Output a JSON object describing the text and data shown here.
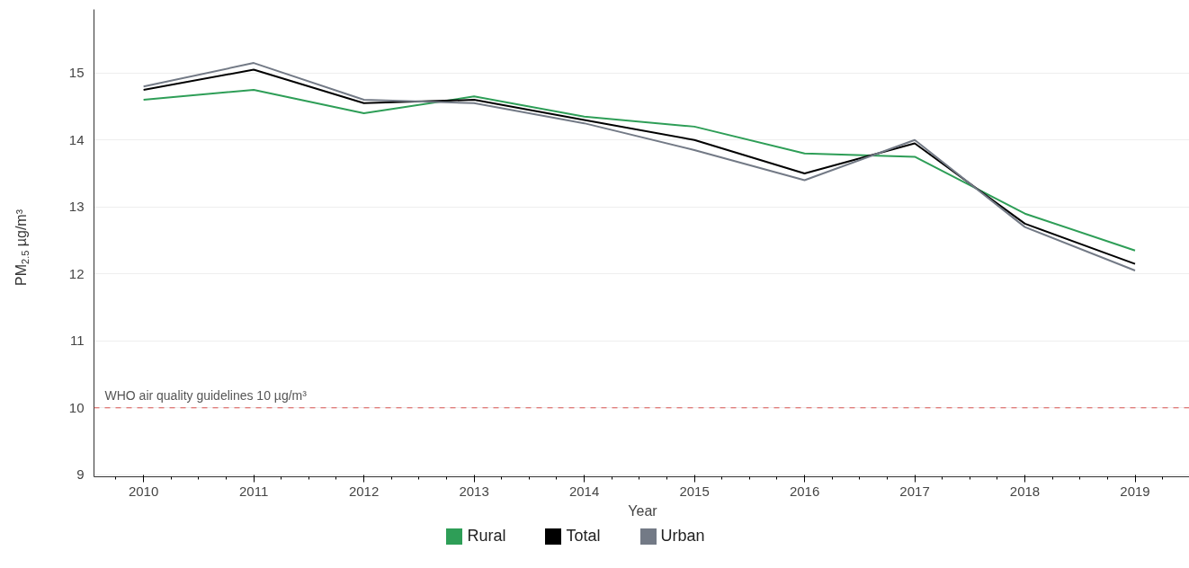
{
  "chart_data": {
    "type": "line",
    "xlabel": "Year",
    "ylabel": "PM$_{2.5}$ µg/m³",
    "x": [
      2010,
      2011,
      2012,
      2013,
      2014,
      2015,
      2016,
      2017,
      2018,
      2019
    ],
    "series": [
      {
        "name": "Rural",
        "color": "#2e9e57",
        "values": [
          14.6,
          14.75,
          14.4,
          14.65,
          14.35,
          14.2,
          13.8,
          13.75,
          12.9,
          12.35
        ]
      },
      {
        "name": "Total",
        "color": "#000000",
        "values": [
          14.75,
          15.05,
          14.55,
          14.6,
          14.3,
          14.0,
          13.5,
          13.95,
          12.75,
          12.15
        ]
      },
      {
        "name": "Urban",
        "color": "#737a86",
        "values": [
          14.8,
          15.15,
          14.6,
          14.55,
          14.25,
          13.85,
          13.4,
          14.0,
          12.7,
          12.05
        ]
      }
    ],
    "xlim": [
      2009.55,
      2019.51
    ],
    "xticks": [
      2010,
      2011,
      2012,
      2013,
      2014,
      2015,
      2016,
      2017,
      2018,
      2019
    ],
    "ylim": [
      8.97,
      15.95
    ],
    "yticks": [
      9,
      10,
      11,
      12,
      13,
      14,
      15
    ],
    "ref_lines": [
      {
        "axis": "y",
        "value": 10,
        "label": "WHO air quality guidelines 10 µg/m³",
        "color": "#d9534f",
        "line_style": "dashed"
      }
    ],
    "grid": "y",
    "legend": "bottom",
    "marker": "none",
    "line_style": "solid"
  }
}
